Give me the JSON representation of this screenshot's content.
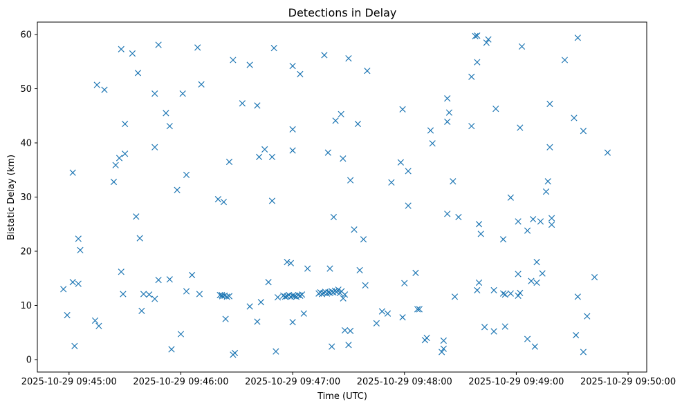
{
  "chart_data": {
    "type": "scatter",
    "title": "Detections in Delay",
    "xlabel": "Time (UTC)",
    "ylabel": "Bistatic Delay (km)",
    "x_ticks": [
      "2025-10-29 09:45:00",
      "2025-10-29 09:46:00",
      "2025-10-29 09:47:00",
      "2025-10-29 09:48:00",
      "2025-10-29 09:49:00",
      "2025-10-29 09:50:00"
    ],
    "y_ticks": [
      "0",
      "10",
      "20",
      "30",
      "40",
      "50",
      "60"
    ],
    "xlim": [
      "2025-10-29 09:44:43",
      "2025-10-29 09:50:10"
    ],
    "ylim": [
      -2.3,
      62.3
    ],
    "grid": false,
    "marker": "x",
    "color": "#1f77b4",
    "points": [
      [
        "09:44:57",
        13.0
      ],
      [
        "09:44:59",
        8.2
      ],
      [
        "09:45:02",
        34.5
      ],
      [
        "09:45:02",
        14.3
      ],
      [
        "09:45:03",
        2.5
      ],
      [
        "09:45:05",
        22.3
      ],
      [
        "09:45:05",
        14.0
      ],
      [
        "09:45:06",
        20.2
      ],
      [
        "09:45:14",
        7.2
      ],
      [
        "09:45:15",
        50.7
      ],
      [
        "09:45:16",
        6.2
      ],
      [
        "09:45:19",
        49.8
      ],
      [
        "09:45:24",
        32.8
      ],
      [
        "09:45:25",
        35.9
      ],
      [
        "09:45:27",
        37.2
      ],
      [
        "09:45:28",
        57.3
      ],
      [
        "09:45:28",
        16.2
      ],
      [
        "09:45:29",
        12.1
      ],
      [
        "09:45:30",
        43.5
      ],
      [
        "09:45:30",
        38.0
      ],
      [
        "09:45:34",
        56.5
      ],
      [
        "09:45:36",
        26.4
      ],
      [
        "09:45:37",
        52.9
      ],
      [
        "09:45:38",
        22.4
      ],
      [
        "09:45:39",
        9.0
      ],
      [
        "09:45:40",
        12.1
      ],
      [
        "09:45:43",
        12.0
      ],
      [
        "09:45:46",
        49.1
      ],
      [
        "09:45:46",
        39.2
      ],
      [
        "09:45:46",
        11.2
      ],
      [
        "09:45:48",
        58.1
      ],
      [
        "09:45:48",
        14.7
      ],
      [
        "09:45:52",
        45.5
      ],
      [
        "09:45:54",
        43.1
      ],
      [
        "09:45:54",
        14.8
      ],
      [
        "09:45:55",
        1.9
      ],
      [
        "09:45:58",
        31.3
      ],
      [
        "09:46:00",
        4.7
      ],
      [
        "09:46:01",
        49.1
      ],
      [
        "09:46:03",
        34.1
      ],
      [
        "09:46:03",
        12.6
      ],
      [
        "09:46:06",
        15.6
      ],
      [
        "09:46:09",
        57.6
      ],
      [
        "09:46:10",
        12.1
      ],
      [
        "09:46:11",
        50.8
      ],
      [
        "09:46:20",
        29.6
      ],
      [
        "09:46:22",
        11.9
      ],
      [
        "09:46:23",
        29.1
      ],
      [
        "09:46:24",
        7.5
      ],
      [
        "09:46:26",
        36.5
      ],
      [
        "09:46:28",
        55.3
      ],
      [
        "09:46:28",
        0.9
      ],
      [
        "09:46:29",
        1.2
      ],
      [
        "09:46:33",
        47.3
      ],
      [
        "09:46:37",
        54.4
      ],
      [
        "09:46:37",
        9.8
      ],
      [
        "09:46:41",
        46.9
      ],
      [
        "09:46:41",
        7.0
      ],
      [
        "09:46:42",
        37.4
      ],
      [
        "09:46:43",
        10.6
      ],
      [
        "09:46:45",
        38.8
      ],
      [
        "09:46:47",
        14.3
      ],
      [
        "09:46:49",
        37.4
      ],
      [
        "09:46:49",
        29.3
      ],
      [
        "09:46:50",
        57.5
      ],
      [
        "09:46:51",
        1.5
      ],
      [
        "09:46:52",
        11.5
      ],
      [
        "09:46:57",
        18.0
      ],
      [
        "09:46:59",
        17.8
      ],
      [
        "09:47:00",
        54.2
      ],
      [
        "09:47:00",
        42.5
      ],
      [
        "09:47:00",
        38.6
      ],
      [
        "09:47:00",
        6.9
      ],
      [
        "09:47:04",
        52.7
      ],
      [
        "09:47:06",
        8.5
      ],
      [
        "09:47:08",
        16.8
      ],
      [
        "09:47:17",
        56.2
      ],
      [
        "09:47:19",
        38.2
      ],
      [
        "09:47:20",
        16.8
      ],
      [
        "09:47:21",
        2.4
      ],
      [
        "09:47:22",
        26.3
      ],
      [
        "09:47:23",
        44.1
      ],
      [
        "09:47:26",
        45.3
      ],
      [
        "09:47:27",
        37.1
      ],
      [
        "09:47:28",
        5.4
      ],
      [
        "09:47:30",
        55.6
      ],
      [
        "09:47:31",
        33.1
      ],
      [
        "09:47:30",
        2.7
      ],
      [
        "09:47:31",
        5.3
      ],
      [
        "09:47:33",
        24.0
      ],
      [
        "09:47:35",
        43.5
      ],
      [
        "09:47:36",
        16.5
      ],
      [
        "09:47:38",
        22.2
      ],
      [
        "09:47:39",
        13.7
      ],
      [
        "09:47:40",
        53.3
      ],
      [
        "09:47:45",
        6.7
      ],
      [
        "09:47:48",
        8.9
      ],
      [
        "09:47:51",
        8.5
      ],
      [
        "09:47:53",
        32.7
      ],
      [
        "09:47:58",
        36.4
      ],
      [
        "09:47:59",
        46.2
      ],
      [
        "09:47:59",
        7.8
      ],
      [
        "09:48:00",
        14.1
      ],
      [
        "09:48:02",
        34.8
      ],
      [
        "09:48:02",
        28.4
      ],
      [
        "09:48:06",
        16.0
      ],
      [
        "09:48:07",
        9.3
      ],
      [
        "09:48:08",
        9.3
      ],
      [
        "09:48:11",
        3.6
      ],
      [
        "09:48:12",
        4.0
      ],
      [
        "09:48:14",
        42.3
      ],
      [
        "09:48:15",
        39.9
      ],
      [
        "09:48:20",
        1.4
      ],
      [
        "09:48:21",
        2.0
      ],
      [
        "09:48:21",
        3.5
      ],
      [
        "09:48:23",
        48.2
      ],
      [
        "09:48:23",
        43.9
      ],
      [
        "09:48:23",
        26.9
      ],
      [
        "09:48:24",
        45.6
      ],
      [
        "09:48:26",
        32.9
      ],
      [
        "09:48:27",
        11.6
      ],
      [
        "09:48:29",
        26.3
      ],
      [
        "09:48:36",
        52.2
      ],
      [
        "09:48:36",
        43.1
      ],
      [
        "09:48:38",
        59.7
      ],
      [
        "09:48:39",
        59.8
      ],
      [
        "09:48:39",
        54.9
      ],
      [
        "09:48:39",
        12.8
      ],
      [
        "09:48:40",
        25.0
      ],
      [
        "09:48:40",
        14.2
      ],
      [
        "09:48:41",
        23.2
      ],
      [
        "09:48:43",
        6.0
      ],
      [
        "09:48:44",
        58.5
      ],
      [
        "09:48:45",
        59.1
      ],
      [
        "09:48:48",
        12.8
      ],
      [
        "09:48:48",
        5.2
      ],
      [
        "09:48:49",
        46.3
      ],
      [
        "09:48:53",
        22.2
      ],
      [
        "09:48:54",
        6.1
      ],
      [
        "09:48:53",
        12.2
      ],
      [
        "09:48:54",
        12.0
      ],
      [
        "09:48:57",
        29.9
      ],
      [
        "09:48:57",
        12.2
      ],
      [
        "09:49:01",
        25.5
      ],
      [
        "09:49:01",
        15.8
      ],
      [
        "09:49:01",
        11.8
      ],
      [
        "09:49:02",
        42.8
      ],
      [
        "09:49:02",
        12.3
      ],
      [
        "09:49:03",
        57.8
      ],
      [
        "09:49:06",
        3.8
      ],
      [
        "09:49:06",
        23.8
      ],
      [
        "09:49:08",
        14.5
      ],
      [
        "09:49:09",
        25.9
      ],
      [
        "09:49:10",
        2.4
      ],
      [
        "09:49:11",
        14.2
      ],
      [
        "09:49:11",
        18.0
      ],
      [
        "09:49:13",
        25.5
      ],
      [
        "09:49:14",
        15.9
      ],
      [
        "09:49:16",
        31.0
      ],
      [
        "09:49:17",
        32.9
      ],
      [
        "09:49:18",
        47.2
      ],
      [
        "09:49:18",
        39.2
      ],
      [
        "09:49:19",
        26.1
      ],
      [
        "09:49:19",
        24.9
      ],
      [
        "09:49:26",
        55.3
      ],
      [
        "09:49:31",
        44.6
      ],
      [
        "09:49:32",
        4.5
      ],
      [
        "09:49:33",
        59.4
      ],
      [
        "09:49:33",
        11.6
      ],
      [
        "09:49:36",
        42.2
      ],
      [
        "09:49:36",
        1.4
      ],
      [
        "09:49:38",
        8.0
      ],
      [
        "09:49:42",
        15.2
      ],
      [
        "09:49:49",
        38.2
      ]
    ],
    "series_segments": [
      {
        "from": "09:46:21",
        "to": "09:46:26",
        "count": 5,
        "y": [
          11.9,
          11.7,
          11.8,
          11.6,
          11.7
        ]
      },
      {
        "from": "09:46:55",
        "to": "09:47:05",
        "count": 11,
        "y": [
          11.8,
          11.6,
          11.7,
          11.9,
          11.6,
          11.8,
          11.7,
          11.6,
          11.9,
          11.8,
          12.0
        ]
      },
      {
        "from": "09:47:14",
        "to": "09:47:28",
        "count": 17,
        "y": [
          12.2,
          12.4,
          12.1,
          12.3,
          12.5,
          12.2,
          12.4,
          12.3,
          12.6,
          12.4,
          12.7,
          12.5,
          12.9,
          12.3,
          12.6,
          11.3,
          12.0
        ]
      }
    ]
  }
}
